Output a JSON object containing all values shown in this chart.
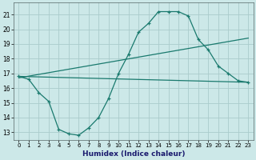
{
  "title": "",
  "xlabel": "Humidex (Indice chaleur)",
  "bg_color": "#cce8e8",
  "grid_color": "#aacccc",
  "line_color": "#1a7a6e",
  "xlim": [
    -0.5,
    23.5
  ],
  "ylim": [
    12.5,
    21.8
  ],
  "xticks": [
    0,
    1,
    2,
    3,
    4,
    5,
    6,
    7,
    8,
    9,
    10,
    11,
    12,
    13,
    14,
    15,
    16,
    17,
    18,
    19,
    20,
    21,
    22,
    23
  ],
  "yticks": [
    13,
    14,
    15,
    16,
    17,
    18,
    19,
    20,
    21
  ],
  "series1_x": [
    0,
    1,
    2,
    3,
    4,
    5,
    6,
    7,
    8,
    9,
    10,
    11,
    12,
    13,
    14,
    15,
    16,
    17,
    18,
    19,
    20,
    21,
    22,
    23
  ],
  "series1_y": [
    16.8,
    16.6,
    15.7,
    15.1,
    13.2,
    12.9,
    12.8,
    13.3,
    14.0,
    15.3,
    17.0,
    18.3,
    19.8,
    20.4,
    21.2,
    21.2,
    21.2,
    20.9,
    19.3,
    18.6,
    17.5,
    17.0,
    16.5,
    16.4
  ],
  "series2_x": [
    0,
    23
  ],
  "series2_y": [
    16.8,
    16.4
  ],
  "series3_x": [
    0,
    23
  ],
  "series3_y": [
    16.7,
    19.4
  ]
}
